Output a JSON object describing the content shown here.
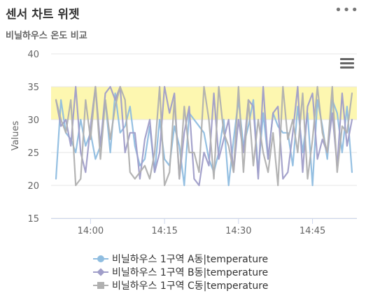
{
  "widget": {
    "title": "센서 차트 위젯",
    "more_icon": "ellipsis-icon",
    "menu_icon": "hamburger-menu-icon"
  },
  "chart_data": {
    "type": "line",
    "subtitle": "비닐하우스 온도 비교",
    "ylabel": "Values",
    "ylim": [
      15,
      40
    ],
    "yticks": [
      15,
      20,
      25,
      30,
      35,
      40
    ],
    "xlim": [
      "13:52",
      "14:54"
    ],
    "xticks": [
      "14:00",
      "14:15",
      "14:30",
      "14:45"
    ],
    "plot_band": {
      "from": 30,
      "to": 35,
      "color": "#fdf7b0"
    },
    "grid": "horizontal",
    "legend_position": "bottom",
    "x": [
      "13:53",
      "13:54",
      "13:55",
      "13:56",
      "13:57",
      "13:58",
      "13:59",
      "14:00",
      "14:01",
      "14:02",
      "14:03",
      "14:04",
      "14:05",
      "14:06",
      "14:07",
      "14:08",
      "14:09",
      "14:10",
      "14:11",
      "14:12",
      "14:13",
      "14:14",
      "14:15",
      "14:16",
      "14:17",
      "14:18",
      "14:19",
      "14:20",
      "14:21",
      "14:22",
      "14:23",
      "14:24",
      "14:25",
      "14:26",
      "14:27",
      "14:28",
      "14:29",
      "14:30",
      "14:31",
      "14:32",
      "14:33",
      "14:34",
      "14:35",
      "14:36",
      "14:37",
      "14:38",
      "14:39",
      "14:40",
      "14:41",
      "14:42",
      "14:43",
      "14:44",
      "14:45",
      "14:46",
      "14:47",
      "14:48",
      "14:49",
      "14:50",
      "14:51",
      "14:52",
      "14:53"
    ],
    "series": [
      {
        "name": "비닐하우스 1구역 A동|temperature",
        "color": "#8fbde0",
        "marker": "circle",
        "values": [
          21,
          33,
          28,
          27,
          25,
          30,
          26,
          28,
          24,
          26,
          33,
          25,
          34,
          28,
          29,
          32,
          26,
          23,
          24,
          29,
          22,
          30,
          24,
          23,
          29,
          26,
          20,
          31,
          30,
          29,
          28,
          24,
          22,
          25,
          30,
          20,
          27,
          33,
          26,
          29,
          33,
          22,
          31,
          24,
          31,
          29,
          28,
          28,
          23,
          32,
          25,
          31,
          20,
          33,
          29,
          24,
          33,
          31,
          25,
          32,
          22
        ]
      },
      {
        "name": "비닐하우스 1구역 B동|temperature",
        "color": "#a09ec9",
        "marker": "diamond",
        "values": [
          33,
          29,
          30,
          26,
          35,
          25,
          22,
          29,
          35,
          26,
          34,
          35,
          33,
          35,
          25,
          28,
          28,
          21,
          27,
          30,
          22,
          25,
          35,
          31,
          34,
          21,
          28,
          32,
          21,
          20,
          25,
          23,
          34,
          24,
          27,
          30,
          22,
          30,
          25,
          33,
          32,
          21,
          35,
          24,
          31,
          32,
          21,
          22,
          28,
          35,
          22,
          32,
          34,
          24,
          27,
          25,
          31,
          23,
          34,
          26,
          30
        ]
      },
      {
        "name": "비닐하우스 1구역 C동|temperature",
        "color": "#b0b0b0",
        "marker": "square",
        "values": [
          33,
          30,
          28,
          33,
          20,
          21,
          33,
          27,
          35,
          24,
          33,
          27,
          32,
          35,
          33,
          22,
          21,
          22,
          23,
          21,
          25,
          35,
          20,
          22,
          33,
          21,
          32,
          25,
          25,
          22,
          35,
          30,
          21,
          35,
          28,
          26,
          22,
          35,
          22,
          33,
          23,
          30,
          25,
          22,
          28,
          20,
          35,
          27,
          30,
          25,
          34,
          21,
          27,
          35,
          28,
          25,
          35,
          22,
          29,
          28,
          34
        ]
      }
    ]
  }
}
